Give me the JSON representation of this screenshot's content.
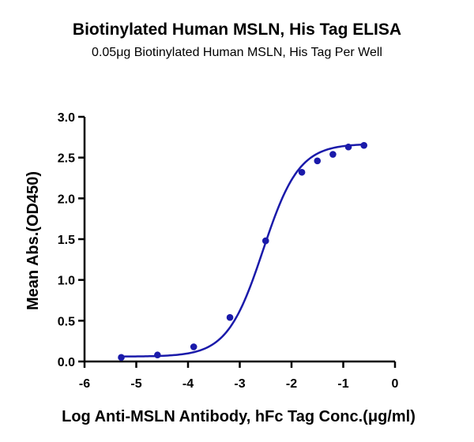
{
  "chart_data": {
    "type": "scatter",
    "title": "Biotinylated Human MSLN, His Tag ELISA",
    "subtitle": "0.05μg Biotinylated Human MSLN, His Tag Per Well",
    "xlabel": "Log Anti-MSLN Antibody, hFc Tag Conc.(μg/ml)",
    "ylabel": "Mean Abs.(OD450)",
    "xlim": [
      -6,
      0
    ],
    "ylim": [
      0.0,
      3.0
    ],
    "xticks": [
      "-6",
      "-5",
      "-4",
      "-3",
      "-2",
      "-1",
      "0"
    ],
    "yticks": [
      "0.0",
      "0.5",
      "1.0",
      "1.5",
      "2.0",
      "2.5",
      "3.0"
    ],
    "grid": false,
    "series": [
      {
        "color": "#1a1aaa",
        "x": [
          -5.29,
          -4.59,
          -3.89,
          -3.19,
          -2.5,
          -1.8,
          -1.5,
          -1.2,
          -0.9,
          -0.6
        ],
        "y": [
          0.05,
          0.08,
          0.18,
          0.54,
          1.48,
          2.32,
          2.46,
          2.54,
          2.63,
          2.65
        ]
      }
    ],
    "fit": {
      "bottom": 0.06,
      "top": 2.67,
      "logEC50": -2.55,
      "hill": 1.25
    }
  }
}
